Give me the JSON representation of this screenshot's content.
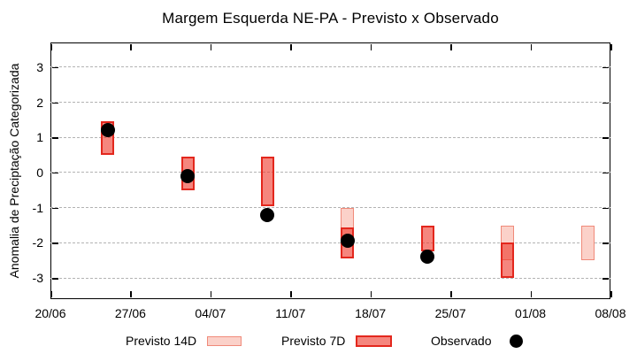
{
  "colors": {
    "previsto_14d_fill": "#fbd1c9",
    "previsto_14d_border": "#f08a7a",
    "previsto_7d_fill_base": "#ee3528",
    "previsto_7d_border": "#e3271d",
    "observado": "#000000",
    "grid": "#b3b3b3",
    "axis": "#000000"
  },
  "chart_data": {
    "type": "bar",
    "subtype": "floating-range-bars-with-observed-points",
    "title": "Margem Esquerda NE-PA - Previsto x Observado",
    "xlabel": "",
    "ylabel": "Anomalia de Preciptação Categorizada",
    "ylim": [
      -3.6,
      3.7
    ],
    "y_ticks": [
      -3,
      -2,
      -1,
      0,
      1,
      2,
      3
    ],
    "x_tick_labels": [
      "20/06",
      "27/06",
      "04/07",
      "11/07",
      "18/07",
      "25/07",
      "01/08",
      "08/08"
    ],
    "x_tick_days": [
      0,
      7,
      14,
      21,
      28,
      35,
      42,
      49
    ],
    "xlim_days": [
      0,
      49
    ],
    "grid": true,
    "grid_style": "horizontal-dashed",
    "legend_position": "bottom",
    "legend": [
      "Previsto 14D",
      "Previsto 7D",
      "Observado"
    ],
    "groups": [
      {
        "date": "25/06",
        "day": 5,
        "previsto_14d": null,
        "previsto_7d": [
          0.5,
          1.45
        ],
        "observado": 1.2
      },
      {
        "date": "02/07",
        "day": 12,
        "previsto_14d": null,
        "previsto_7d": [
          -0.5,
          0.45
        ],
        "observado": -0.1
      },
      {
        "date": "09/07",
        "day": 19,
        "previsto_14d": null,
        "previsto_7d": [
          -0.95,
          0.45
        ],
        "observado": -1.2
      },
      {
        "date": "16/07",
        "day": 26,
        "previsto_14d": [
          -2.0,
          -1.0
        ],
        "previsto_7d": [
          -2.45,
          -1.55
        ],
        "observado": -1.95
      },
      {
        "date": "23/07",
        "day": 33,
        "previsto_14d": null,
        "previsto_7d": [
          -2.25,
          -1.5
        ],
        "observado": -2.4
      },
      {
        "date": "30/07",
        "day": 40,
        "previsto_14d": [
          -2.5,
          -1.5
        ],
        "previsto_7d": [
          -3.0,
          -2.0
        ],
        "observado": null
      },
      {
        "date": "06/08",
        "day": 47,
        "previsto_14d": [
          -2.5,
          -1.5
        ],
        "previsto_7d": null,
        "observado": null
      }
    ]
  }
}
